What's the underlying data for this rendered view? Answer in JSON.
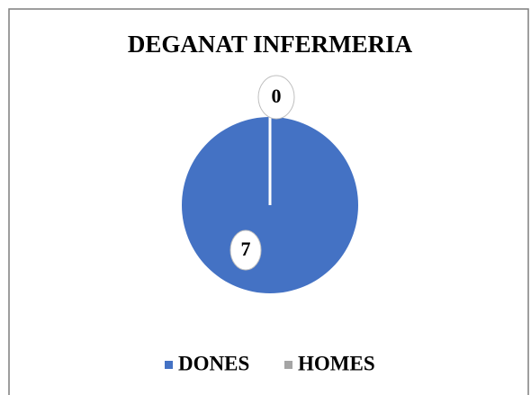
{
  "chart_data": {
    "type": "pie",
    "title": "DEGANAT INFERMERIA",
    "categories": [
      "DONES",
      "HOMES"
    ],
    "values": [
      7,
      0
    ],
    "colors": [
      "#4472c4",
      "#a5a5a5"
    ],
    "legend": "bottom"
  }
}
